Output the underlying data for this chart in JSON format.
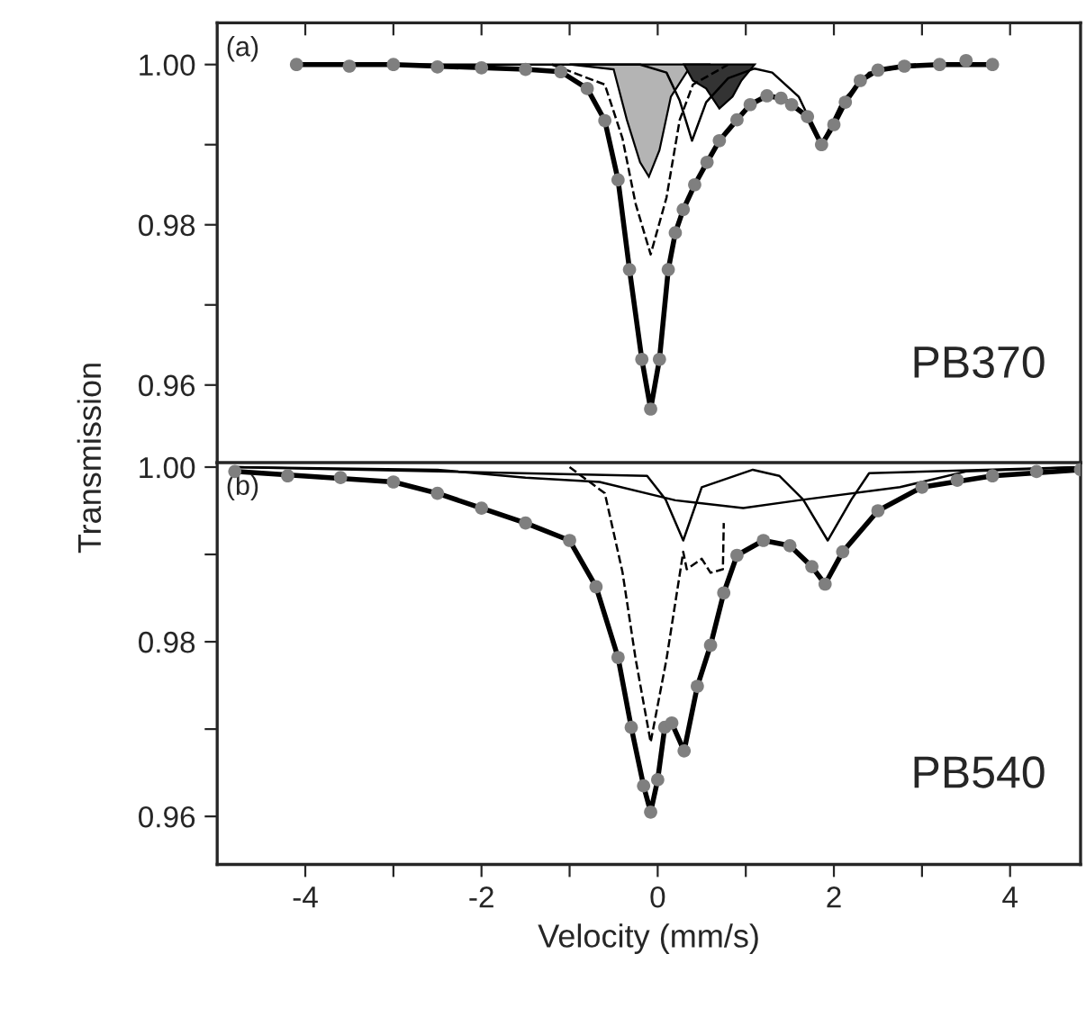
{
  "chart_data": [
    {
      "type": "line",
      "ylabel": "Transmission",
      "annotations": [
        "(a)",
        "PB370"
      ],
      "xlim": [
        -5,
        4.8
      ],
      "xticks": [
        -4,
        {
          "value": -3,
          "label": null
        },
        -2,
        {
          "value": -1,
          "label": null
        },
        0,
        {
          "value": 1,
          "label": null
        },
        2,
        {
          "value": 3,
          "label": null
        },
        4
      ],
      "ylim": [
        0.9503,
        1.0052
      ],
      "yticks": [
        {
          "value": 1.0,
          "label": "1.00"
        },
        {
          "value": 0.99,
          "label": null
        },
        {
          "value": 0.98,
          "label": "0.98"
        },
        {
          "value": 0.97,
          "label": null
        },
        {
          "value": 0.96,
          "label": "0.96"
        }
      ],
      "tick_labels": "y",
      "grid": false,
      "series": [
        {
          "type": "area",
          "color": "#b4b4b4",
          "x": [
            -1.0,
            -0.5,
            -0.35,
            -0.2,
            -0.1,
            0.02,
            0.15,
            0.35,
            0.6
          ],
          "values": [
            1.0,
            0.9994,
            0.9931,
            0.9878,
            0.986,
            0.9893,
            0.996,
            0.9994,
            1.0
          ]
        },
        {
          "type": "area",
          "color": "#333333",
          "x": [
            0.3,
            0.4,
            0.55,
            0.7,
            0.85,
            0.95,
            1.1
          ],
          "values": [
            1.0,
            0.998,
            0.997,
            0.9945,
            0.996,
            0.998,
            1.0
          ]
        },
        {
          "type": "scatter",
          "color": "#7f7f7f",
          "marker": "circle",
          "x": [
            -4.1,
            -3.5,
            -3.0,
            -2.5,
            -2.0,
            -1.5,
            -1.1,
            -0.8,
            -0.6,
            -0.45,
            -0.32,
            -0.18,
            -0.08,
            0.02,
            0.12,
            0.2,
            0.29,
            0.42,
            0.56,
            0.7,
            0.9,
            1.05,
            1.24,
            1.4,
            1.52,
            1.7,
            1.86,
            2.0,
            2.13,
            2.3,
            2.5,
            2.8,
            3.2,
            3.5,
            3.8
          ],
          "values": [
            1.0,
            0.9998,
            1.0,
            0.9997,
            0.9996,
            0.9994,
            0.9991,
            0.997,
            0.993,
            0.9856,
            0.9744,
            0.9632,
            0.957,
            0.9632,
            0.9744,
            0.979,
            0.9819,
            0.985,
            0.9878,
            0.9905,
            0.9931,
            0.995,
            0.9961,
            0.9958,
            0.995,
            0.9935,
            0.99,
            0.9925,
            0.9953,
            0.998,
            0.9993,
            0.9998,
            1.0,
            1.0005,
            1.0
          ]
        },
        {
          "color": "#000000",
          "x": [
            -4.1,
            -3.0,
            -2.0,
            -1.5,
            -1.1,
            -0.8,
            -0.6,
            -0.45,
            -0.32,
            -0.18,
            -0.08,
            0.02,
            0.12,
            0.2,
            0.29,
            0.42,
            0.56,
            0.7,
            0.9,
            1.05,
            1.24,
            1.4,
            1.52,
            1.7,
            1.86,
            2.0,
            2.13,
            2.3,
            2.5,
            2.8,
            3.2,
            3.8
          ],
          "values": [
            1.0,
            1.0,
            0.9996,
            0.9994,
            0.9991,
            0.997,
            0.993,
            0.9856,
            0.9744,
            0.9632,
            0.957,
            0.9632,
            0.9744,
            0.979,
            0.9819,
            0.985,
            0.9878,
            0.9905,
            0.9931,
            0.995,
            0.9961,
            0.9958,
            0.995,
            0.9935,
            0.99,
            0.9925,
            0.9953,
            0.998,
            0.9993,
            0.9998,
            1.0,
            1.0
          ]
        },
        {
          "color": "#000000",
          "line_style": "dashed",
          "x": [
            -1.2,
            -0.6,
            -0.4,
            -0.25,
            -0.08,
            0.1,
            0.25,
            0.4,
            0.8
          ],
          "values": [
            1.0,
            0.9975,
            0.9908,
            0.9826,
            0.9763,
            0.9834,
            0.9931,
            0.9975,
            1.0
          ]
        },
        {
          "color": "#000000",
          "x": [
            -4.1,
            -0.2,
            0.1,
            0.25,
            0.39,
            0.55,
            0.8,
            1.1,
            1.3,
            1.6,
            1.86,
            2.1,
            2.4,
            3.0,
            3.8
          ],
          "values": [
            1.0,
            1.0,
            0.999,
            0.9955,
            0.9905,
            0.9953,
            0.9983,
            0.9995,
            0.999,
            0.996,
            0.99,
            0.9955,
            0.999,
            1.0,
            1.0
          ]
        }
      ]
    },
    {
      "type": "line",
      "xlabel": "Velocity (mm/s)",
      "annotations": [
        "(b)",
        "PB540"
      ],
      "xlim": [
        -5,
        4.8
      ],
      "xticks": [
        -4,
        {
          "value": -3,
          "label": null
        },
        -2,
        {
          "value": -1,
          "label": null
        },
        0,
        {
          "value": 1,
          "label": null
        },
        2,
        {
          "value": 3,
          "label": null
        },
        4
      ],
      "ylim": [
        0.9545,
        1.0005
      ],
      "yticks": [
        {
          "value": 1.0,
          "label": "1.00"
        },
        {
          "value": 0.99,
          "label": null
        },
        {
          "value": 0.98,
          "label": "0.98"
        },
        {
          "value": 0.97,
          "label": null
        },
        {
          "value": 0.96,
          "label": "0.96"
        }
      ],
      "grid": false,
      "series": [
        {
          "type": "scatter",
          "color": "#7f7f7f",
          "marker": "circle",
          "x": [
            -4.8,
            -4.2,
            -3.6,
            -3.0,
            -2.5,
            -2.0,
            -1.5,
            -1.0,
            -0.7,
            -0.45,
            -0.3,
            -0.16,
            -0.08,
            0.0,
            0.08,
            0.16,
            0.3,
            0.45,
            0.6,
            0.75,
            0.9,
            1.2,
            1.5,
            1.75,
            1.9,
            2.1,
            2.5,
            3.0,
            3.4,
            3.8,
            4.3,
            4.8
          ],
          "values": [
            0.9995,
            0.999,
            0.9988,
            0.9983,
            0.997,
            0.9953,
            0.9936,
            0.9916,
            0.9863,
            0.9782,
            0.9702,
            0.9635,
            0.9605,
            0.9642,
            0.9702,
            0.9707,
            0.9675,
            0.9749,
            0.9796,
            0.9856,
            0.9899,
            0.9916,
            0.991,
            0.9886,
            0.9866,
            0.9903,
            0.995,
            0.9977,
            0.9985,
            0.999,
            0.9995,
            0.9997
          ]
        },
        {
          "color": "#000000",
          "x": [
            -4.8,
            -3.0,
            -2.5,
            -2.0,
            -1.5,
            -1.0,
            -0.7,
            -0.45,
            -0.3,
            -0.16,
            -0.08,
            0.0,
            0.08,
            0.16,
            0.3,
            0.45,
            0.6,
            0.75,
            0.9,
            1.2,
            1.5,
            1.75,
            1.9,
            2.1,
            2.5,
            3.0,
            3.8,
            4.8
          ],
          "values": [
            0.9995,
            0.9983,
            0.997,
            0.9953,
            0.9936,
            0.9916,
            0.9863,
            0.9782,
            0.9702,
            0.9635,
            0.9605,
            0.9642,
            0.9702,
            0.9707,
            0.9675,
            0.9749,
            0.9796,
            0.9856,
            0.9899,
            0.9916,
            0.991,
            0.9886,
            0.9866,
            0.9903,
            0.995,
            0.9977,
            0.999,
            0.9997
          ]
        },
        {
          "color": "#000000",
          "line_style": "dashed",
          "x": [
            -1.0,
            -0.6,
            -0.4,
            -0.25,
            -0.08,
            0.1,
            0.29,
            0.33,
            0.5,
            0.6,
            0.74,
            0.75
          ],
          "values": [
            1.0,
            0.997,
            0.988,
            0.978,
            0.9685,
            0.978,
            0.9903,
            0.9883,
            0.9895,
            0.9879,
            0.9883,
            0.9936
          ]
        },
        {
          "color": "#000000",
          "x": [
            -4.8,
            -0.12,
            0.09,
            0.29,
            0.5,
            1.08,
            1.38,
            1.65,
            1.93,
            2.2,
            2.4,
            4.8
          ],
          "values": [
            1.0,
            0.999,
            0.9963,
            0.9916,
            0.9977,
            0.9997,
            0.999,
            0.9963,
            0.9916,
            0.9963,
            0.9993,
            1.0
          ]
        },
        {
          "color": "#000000",
          "x": [
            -4.8,
            -2.5,
            -1.5,
            -0.66,
            0.2,
            0.97,
            1.6,
            2.75,
            3.5,
            4.8
          ],
          "values": [
            1.0,
            0.9997,
            0.9988,
            0.9983,
            0.9962,
            0.9953,
            0.9962,
            0.9977,
            0.9995,
            1.0
          ]
        }
      ]
    }
  ]
}
